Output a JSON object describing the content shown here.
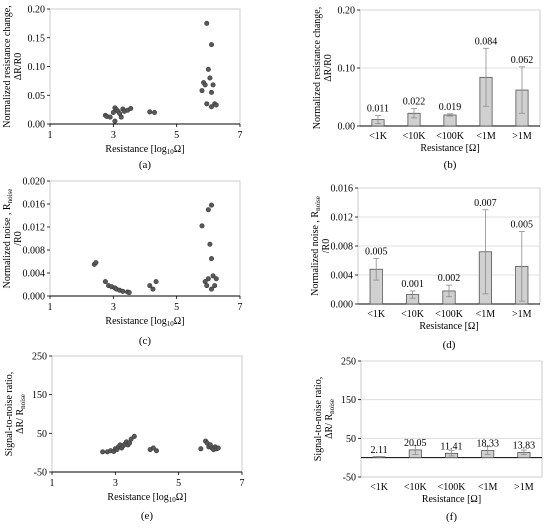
{
  "colors": {
    "marker": "#595959",
    "marker_edge": "#3a3a3a",
    "bar_fill": "#d0d0d0",
    "bar_edge": "#404040",
    "axis": "#000000",
    "grid": "#d9d9d9",
    "error": "#8c8c8c"
  },
  "chart_data": [
    {
      "id": "a",
      "type": "scatter",
      "caption": "(a)",
      "xlabel": "Resistance [log10Ω]",
      "ylabel": [
        "Normalized resistance change,",
        "ΔR/R0"
      ],
      "xlim": [
        1,
        7
      ],
      "ylim": [
        0,
        0.2
      ],
      "xticks": [
        1,
        3,
        5,
        7
      ],
      "yticks": [
        0,
        0.05,
        0.1,
        0.15,
        0.2
      ],
      "xtick_labels": [
        "1",
        "3",
        "5",
        "7"
      ],
      "ytick_labels": [
        "0.00",
        "0.05",
        "0.10",
        "0.15",
        "0.20"
      ],
      "grid": false,
      "points": [
        [
          2.75,
          0.015
        ],
        [
          2.8,
          0.013
        ],
        [
          2.9,
          0.012
        ],
        [
          3.0,
          0.02
        ],
        [
          3.05,
          0.028
        ],
        [
          3.1,
          0.025
        ],
        [
          3.15,
          0.022
        ],
        [
          3.05,
          0.005
        ],
        [
          3.2,
          0.018
        ],
        [
          3.25,
          0.012
        ],
        [
          3.3,
          0.026
        ],
        [
          3.35,
          0.022
        ],
        [
          3.45,
          0.024
        ],
        [
          3.55,
          0.027
        ],
        [
          4.15,
          0.021
        ],
        [
          4.3,
          0.02
        ],
        [
          5.8,
          0.058
        ],
        [
          5.85,
          0.072
        ],
        [
          5.9,
          0.068
        ],
        [
          5.95,
          0.175
        ],
        [
          5.95,
          0.035
        ],
        [
          6.0,
          0.095
        ],
        [
          6.05,
          0.08
        ],
        [
          6.1,
          0.138
        ],
        [
          6.1,
          0.055
        ],
        [
          6.15,
          0.068
        ],
        [
          6.2,
          0.035
        ],
        [
          6.1,
          0.03
        ],
        [
          6.25,
          0.033
        ]
      ]
    },
    {
      "id": "b",
      "type": "bar",
      "caption": "(b)",
      "xlabel": "Resistance [Ω]",
      "ylabel": [
        "Normalized resistance change,",
        "ΔR/R0"
      ],
      "categories": [
        "<1K",
        "<10K",
        "<100K",
        "<1M",
        ">1M"
      ],
      "values": [
        0.011,
        0.022,
        0.019,
        0.084,
        0.062
      ],
      "value_labels": [
        "0.011",
        "0.022",
        "0.019",
        "0.084",
        "0.062"
      ],
      "errors": [
        0.007,
        0.008,
        0.002,
        0.05,
        0.04
      ],
      "ylim": [
        0,
        0.2
      ],
      "yticks": [
        0,
        0.1,
        0.2
      ],
      "ytick_labels": [
        "0.00",
        "0.10",
        "0.20"
      ],
      "grid": true
    },
    {
      "id": "c",
      "type": "scatter",
      "caption": "(c)",
      "xlabel": "Resistance [log10Ω]",
      "ylabel": [
        "Normalized noise , R",
        "/R0"
      ],
      "ylabel_sub": "noise",
      "xlim": [
        1,
        7
      ],
      "ylim": [
        0,
        0.02
      ],
      "xticks": [
        1,
        3,
        5,
        7
      ],
      "yticks": [
        0,
        0.004,
        0.008,
        0.012,
        0.016,
        0.02
      ],
      "xtick_labels": [
        "1",
        "3",
        "5",
        "7"
      ],
      "ytick_labels": [
        "0.000",
        "0.004",
        "0.008",
        "0.012",
        "0.016",
        "0.020"
      ],
      "grid": false,
      "points": [
        [
          2.4,
          0.0055
        ],
        [
          2.45,
          0.0058
        ],
        [
          2.75,
          0.0025
        ],
        [
          2.85,
          0.0018
        ],
        [
          2.95,
          0.0016
        ],
        [
          3.05,
          0.0014
        ],
        [
          3.1,
          0.0012
        ],
        [
          3.2,
          0.001
        ],
        [
          3.3,
          0.0008
        ],
        [
          3.45,
          0.0007
        ],
        [
          3.5,
          0.0006
        ],
        [
          4.15,
          0.0018
        ],
        [
          4.25,
          0.0012
        ],
        [
          4.35,
          0.0025
        ],
        [
          5.8,
          0.0122
        ],
        [
          5.9,
          0.0025
        ],
        [
          5.95,
          0.0018
        ],
        [
          6.0,
          0.015
        ],
        [
          6.0,
          0.003
        ],
        [
          6.05,
          0.009
        ],
        [
          6.1,
          0.0065
        ],
        [
          6.1,
          0.0158
        ],
        [
          6.15,
          0.0035
        ],
        [
          6.2,
          0.0018
        ],
        [
          6.25,
          0.003
        ],
        [
          6.1,
          0.0012
        ]
      ]
    },
    {
      "id": "d",
      "type": "bar",
      "caption": "(d)",
      "xlabel": "Resistance [Ω]",
      "ylabel": [
        "Normalized noise , R",
        "/R0"
      ],
      "ylabel_sub": "noise",
      "categories": [
        "<1K",
        "<10K",
        "<100K",
        "<1M",
        ">1M"
      ],
      "values": [
        0.0048,
        0.0013,
        0.0018,
        0.0072,
        0.0052
      ],
      "value_labels": [
        "0.005",
        "0.001",
        "0.002",
        "0.007",
        "0.005"
      ],
      "errors": [
        0.0015,
        0.0005,
        0.0008,
        0.0058,
        0.0048
      ],
      "ylim": [
        0,
        0.016
      ],
      "yticks": [
        0,
        0.004,
        0.008,
        0.012,
        0.016
      ],
      "ytick_labels": [
        "0.000",
        "0.004",
        "0.008",
        "0.012",
        "0.016"
      ],
      "grid": true
    },
    {
      "id": "e",
      "type": "scatter",
      "caption": "(e)",
      "xlabel": "Resistance [log10Ω]",
      "ylabel": [
        "Signal-to-noise ratio,",
        "ΔR/ R"
      ],
      "ylabel_sub": "noise",
      "xlim": [
        1,
        7
      ],
      "ylim": [
        -50,
        250
      ],
      "xticks": [
        1,
        3,
        5,
        7
      ],
      "yticks": [
        -50,
        50,
        150,
        250
      ],
      "xtick_labels": [
        "1",
        "3",
        "5",
        "7"
      ],
      "ytick_labels": [
        "-50",
        "50",
        "150",
        "250"
      ],
      "grid": false,
      "points": [
        [
          2.6,
          2
        ],
        [
          2.75,
          2
        ],
        [
          2.85,
          5
        ],
        [
          2.95,
          3
        ],
        [
          3.0,
          10
        ],
        [
          3.05,
          8
        ],
        [
          3.1,
          15
        ],
        [
          3.15,
          20
        ],
        [
          3.2,
          12
        ],
        [
          3.25,
          18
        ],
        [
          3.3,
          22
        ],
        [
          3.35,
          28
        ],
        [
          3.4,
          20
        ],
        [
          3.45,
          25
        ],
        [
          3.5,
          35
        ],
        [
          3.6,
          42
        ],
        [
          4.1,
          8
        ],
        [
          4.2,
          12
        ],
        [
          4.3,
          5
        ],
        [
          5.7,
          10
        ],
        [
          5.85,
          30
        ],
        [
          5.9,
          25
        ],
        [
          5.95,
          15
        ],
        [
          6.0,
          20
        ],
        [
          6.05,
          12
        ],
        [
          6.1,
          8
        ],
        [
          6.15,
          15
        ],
        [
          6.2,
          10
        ],
        [
          6.25,
          12
        ]
      ]
    },
    {
      "id": "f",
      "type": "bar",
      "caption": "(f)",
      "xlabel": "Resistance [Ω]",
      "ylabel": [
        "Signal-to-noise ratio,",
        "ΔR/ R"
      ],
      "ylabel_sub": "noise",
      "categories": [
        "<1K",
        "<10K",
        "<100K",
        "<1M",
        ">1M"
      ],
      "values": [
        2.11,
        20.05,
        11.41,
        18.33,
        13.83
      ],
      "value_labels": [
        "2.11",
        "20.05",
        "11.41",
        "18.33",
        "13.83"
      ],
      "errors": [
        1,
        12,
        7,
        10,
        6
      ],
      "ylim": [
        -50,
        250
      ],
      "yticks": [
        -50,
        50,
        150,
        250
      ],
      "ytick_labels": [
        "-50",
        "50",
        "150",
        "250"
      ],
      "grid": true
    }
  ]
}
